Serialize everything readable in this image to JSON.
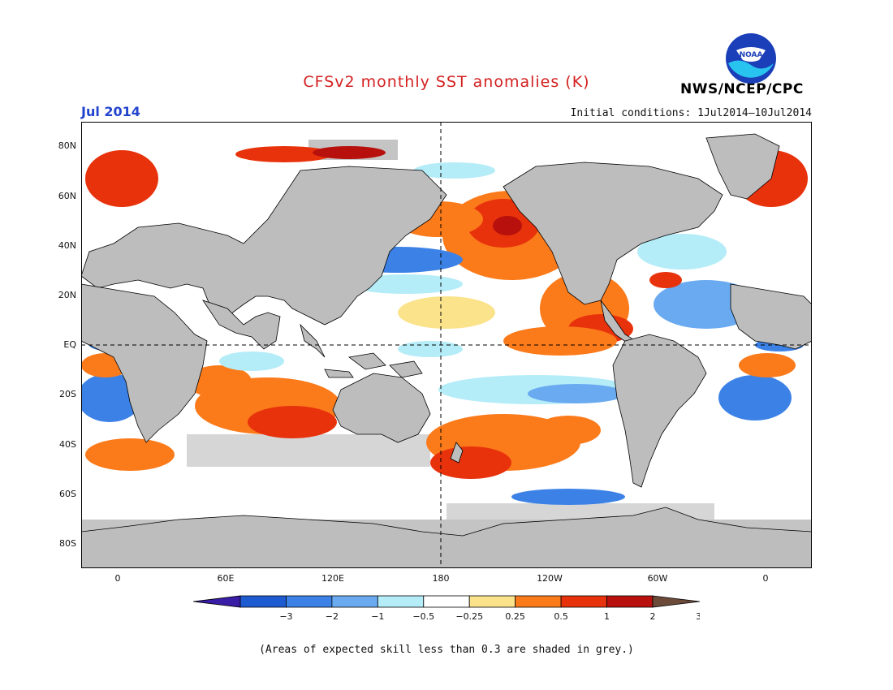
{
  "header": {
    "title": "CFSv2 monthly SST anomalies (K)",
    "date": "Jul 2014",
    "initial_conditions": "Initial conditions: 1Jul2014–10Jul2014",
    "agency": "NWS/NCEP/CPC",
    "logo_text": "NOAA"
  },
  "map": {
    "lat_labels": [
      "80N",
      "60N",
      "40N",
      "20N",
      "EQ",
      "20S",
      "40S",
      "60S",
      "80S"
    ],
    "lon_labels": [
      "0",
      "60E",
      "120E",
      "180",
      "120W",
      "60W",
      "0"
    ],
    "land_color": "#bdbdbd",
    "low_skill_color": "#bdbdbd"
  },
  "colorbar": {
    "ticks": [
      "−3",
      "−2",
      "−1",
      "−0.5",
      "−0.25",
      "0.25",
      "0.5",
      "1",
      "2",
      "3"
    ],
    "colors": [
      "#3a1da6",
      "#1e5bd0",
      "#3c82e6",
      "#6aaaf0",
      "#b4ecf8",
      "#ffffff",
      "#fbe38c",
      "#fb7a1a",
      "#e8320c",
      "#b8100c",
      "#6b4a3a"
    ]
  },
  "footer": {
    "note": "(Areas of expected skill less than 0.3 are shaded in grey.)"
  }
}
